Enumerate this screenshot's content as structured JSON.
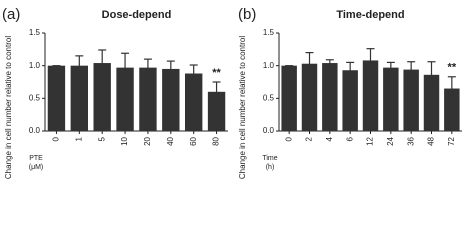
{
  "chart_data": [
    {
      "type": "bar",
      "panel_label": "(a)",
      "title": "Dose-depend",
      "ylabel": "Change in cell number relative to control",
      "xlabel": [
        "PTE",
        "(μM)"
      ],
      "categories": [
        "0",
        "1",
        "5",
        "10",
        "20",
        "40",
        "60",
        "80"
      ],
      "values": [
        1.0,
        1.0,
        1.04,
        0.97,
        0.97,
        0.95,
        0.88,
        0.6
      ],
      "errors": [
        0,
        0.15,
        0.2,
        0.22,
        0.13,
        0.12,
        0.13,
        0.15
      ],
      "color": "#333333",
      "ylim": [
        0,
        1.5
      ],
      "yticks": [
        {
          "value": 0,
          "label": "0.0"
        },
        {
          "value": 0.5,
          "label": "0.5"
        },
        {
          "value": 1,
          "label": "1.0"
        },
        {
          "value": 1.5,
          "label": "1.5"
        }
      ],
      "annotations": [
        {
          "text": "**",
          "category": "80"
        }
      ]
    },
    {
      "type": "bar",
      "panel_label": "(b)",
      "title": "Time-depend",
      "ylabel": "Change in cell number relative to control",
      "xlabel": [
        "Time",
        "(h)"
      ],
      "categories": [
        "0",
        "2",
        "4",
        "6",
        "12",
        "24",
        "36",
        "48",
        "72"
      ],
      "values": [
        1.0,
        1.03,
        1.04,
        0.93,
        1.08,
        0.97,
        0.94,
        0.86,
        0.65
      ],
      "errors": [
        0,
        0.17,
        0.05,
        0.12,
        0.18,
        0.08,
        0.12,
        0.2,
        0.18
      ],
      "color": "#333333",
      "ylim": [
        0,
        1.5
      ],
      "yticks": [
        {
          "value": 0,
          "label": "0.0"
        },
        {
          "value": 0.5,
          "label": "0.5"
        },
        {
          "value": 1,
          "label": "1.0"
        },
        {
          "value": 1.5,
          "label": "1.5"
        }
      ],
      "annotations": [
        {
          "text": "**",
          "category": "72"
        }
      ]
    }
  ]
}
